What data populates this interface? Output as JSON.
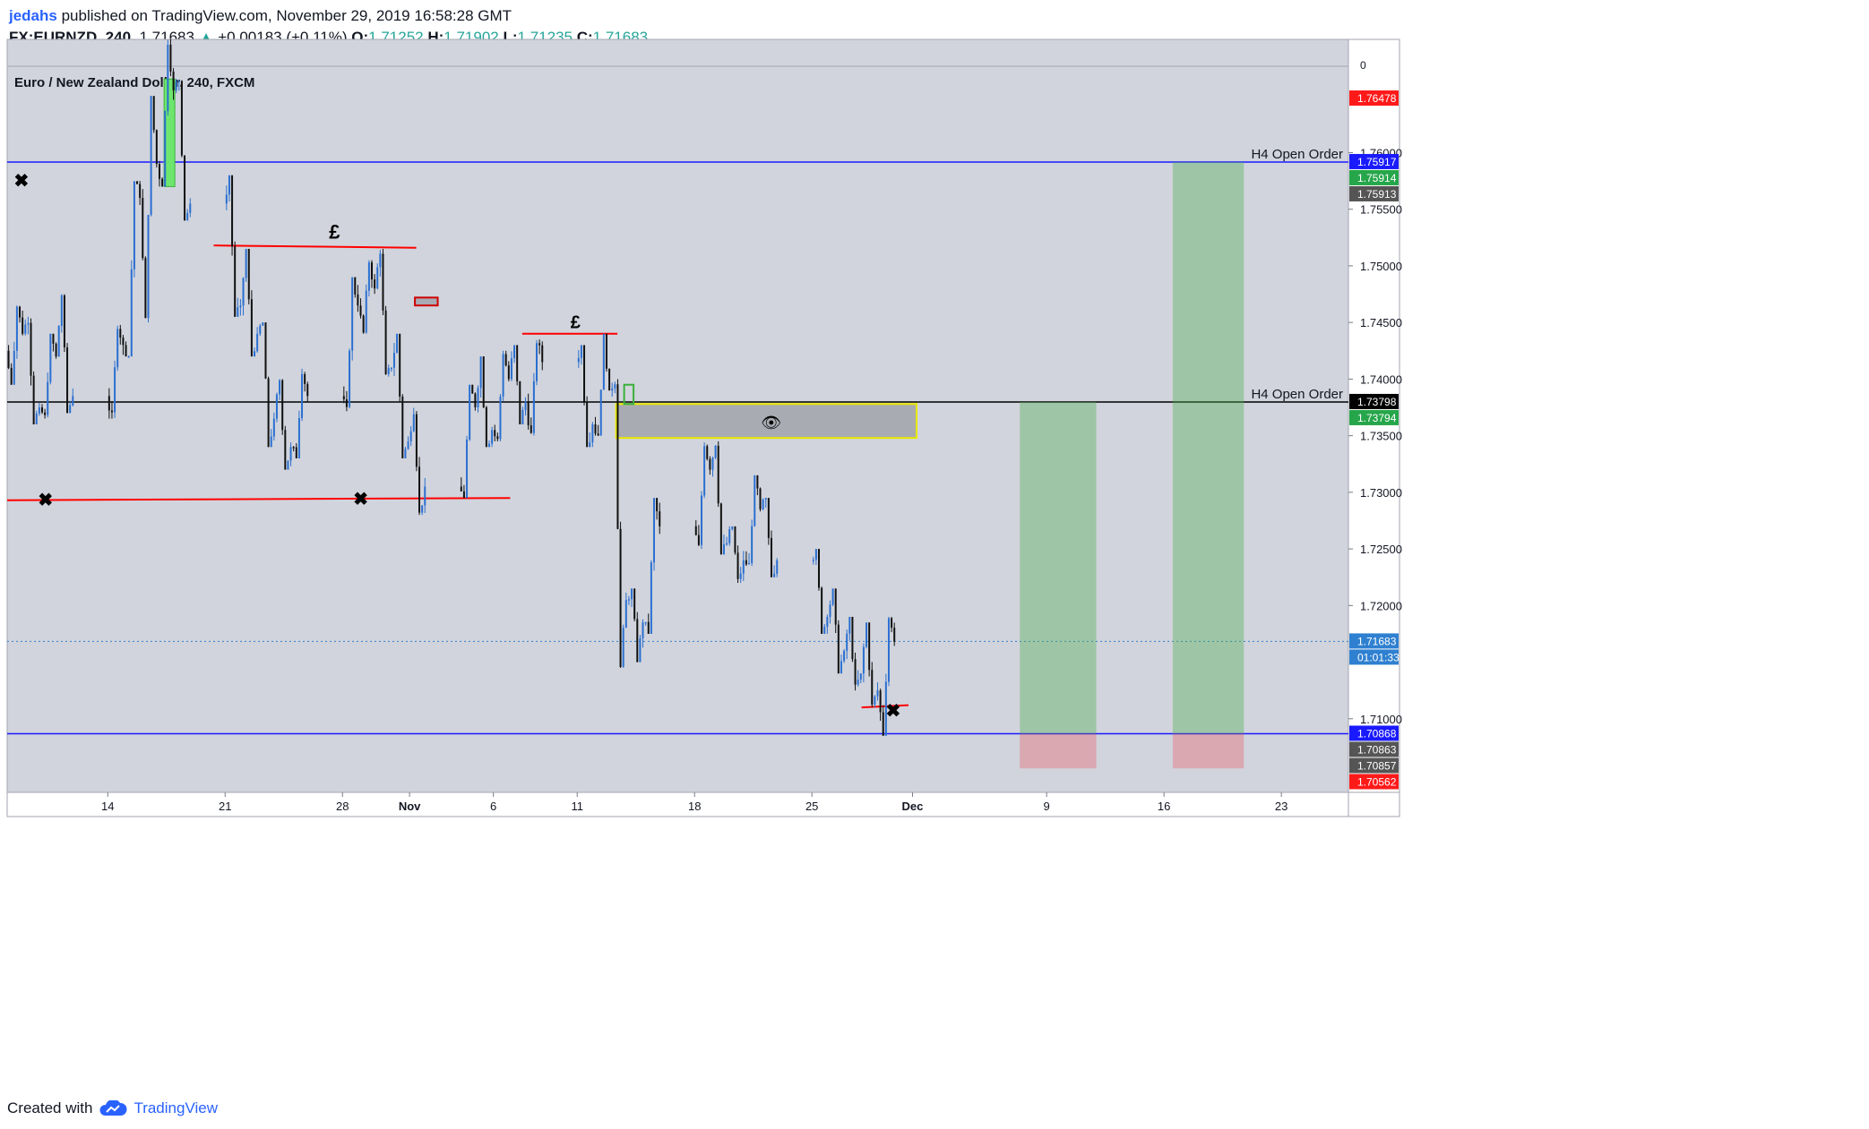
{
  "header": {
    "user": "jedahs",
    "published_text": "published on TradingView.com, November 29, 2019 16:58:28 GMT",
    "symbol": "FX:EURNZD, 240",
    "last": "1.71683",
    "change": "+0.00183 (+0.11%)",
    "open_label": "O:",
    "open": "1.71252",
    "high_label": "H:",
    "high": "1.71902",
    "low_label": "L:",
    "low": "1.71235",
    "close_label": "C:",
    "close": "1.71683"
  },
  "footer": {
    "created_with": "Created with",
    "brand": "TradingView"
  },
  "chart_data": {
    "type": "candlestick",
    "title": "Euro / New Zealand Dollar, 240, FXCM",
    "y_range": [
      1.7035,
      1.77
    ],
    "x_range": [
      "2019-10-08",
      "2019-12-27"
    ],
    "y_ticks": [
      "1.76000",
      "1.75500",
      "1.75000",
      "1.74500",
      "1.74000",
      "1.73500",
      "1.73000",
      "1.72500",
      "1.72000",
      "1.71000"
    ],
    "y_top_label": "0",
    "x_ticks": [
      {
        "label": "14",
        "date": "2019-10-14"
      },
      {
        "label": "21",
        "date": "2019-10-21"
      },
      {
        "label": "28",
        "date": "2019-10-28"
      },
      {
        "label": "Nov",
        "date": "2019-11-01"
      },
      {
        "label": "6",
        "date": "2019-11-06"
      },
      {
        "label": "11",
        "date": "2019-11-11"
      },
      {
        "label": "18",
        "date": "2019-11-18"
      },
      {
        "label": "25",
        "date": "2019-11-25"
      },
      {
        "label": "Dec",
        "date": "2019-12-01"
      },
      {
        "label": "9",
        "date": "2019-12-09"
      },
      {
        "label": "16",
        "date": "2019-12-16"
      },
      {
        "label": "23",
        "date": "2019-12-23"
      }
    ],
    "price_labels": [
      {
        "text": "1.76478",
        "price": 1.76478,
        "color": "#ff1a1a"
      },
      {
        "text": "1.75917",
        "price": 1.75917,
        "color": "#1a1aff"
      },
      {
        "text": "1.75914",
        "price": 1.75914,
        "color": "#26a64a"
      },
      {
        "text": "1.75913",
        "price": 1.75913,
        "color": "#555555"
      },
      {
        "text": "1.73798",
        "price": 1.73798,
        "color": "#000000"
      },
      {
        "text": "1.73794",
        "price": 1.73794,
        "color": "#26a64a"
      },
      {
        "text": "1.71683",
        "price": 1.71683,
        "color": "#2f80d0"
      },
      {
        "text": "01:01:33",
        "price": 1.71683,
        "color": "#2f80d0"
      },
      {
        "text": "1.70868",
        "price": 1.70868,
        "color": "#1a1aff"
      },
      {
        "text": "1.70863",
        "price": 1.70863,
        "color": "#555555"
      },
      {
        "text": "1.70857",
        "price": 1.70857,
        "color": "#555555"
      },
      {
        "text": "1.70562",
        "price": 1.70562,
        "color": "#ff1a1a"
      }
    ],
    "annotations": {
      "h4_label": "H4 Open Order",
      "pound": "£",
      "cross": "✖",
      "eye": "👁"
    },
    "levels": [
      {
        "price": 1.75917,
        "color": "#1a1aff",
        "label": "H4 Open Order"
      },
      {
        "price": 1.73798,
        "color": "#000000",
        "label": "H4 Open Order"
      },
      {
        "price": 1.70868,
        "color": "#1a1aff"
      }
    ],
    "series": [
      {
        "date": "2019-10-08",
        "open": 1.7425,
        "high": 1.7465,
        "low": 1.7395,
        "close": 1.744
      },
      {
        "date": "2019-10-09",
        "open": 1.744,
        "high": 1.7455,
        "low": 1.736,
        "close": 1.7375
      },
      {
        "date": "2019-10-10",
        "open": 1.7375,
        "high": 1.744,
        "low": 1.7365,
        "close": 1.742
      },
      {
        "date": "2019-10-11",
        "open": 1.742,
        "high": 1.7475,
        "low": 1.737,
        "close": 1.7385
      },
      {
        "date": "2019-10-14",
        "open": 1.7385,
        "high": 1.745,
        "low": 1.7365,
        "close": 1.743
      },
      {
        "date": "2019-10-15",
        "open": 1.743,
        "high": 1.7575,
        "low": 1.742,
        "close": 1.756
      },
      {
        "date": "2019-10-16",
        "open": 1.756,
        "high": 1.765,
        "low": 1.745,
        "close": 1.759
      },
      {
        "date": "2019-10-17",
        "open": 1.759,
        "high": 1.77,
        "low": 1.757,
        "close": 1.7655
      },
      {
        "date": "2019-10-18",
        "open": 1.7655,
        "high": 1.7665,
        "low": 1.754,
        "close": 1.7555
      },
      {
        "date": "2019-10-21",
        "open": 1.7555,
        "high": 1.758,
        "low": 1.7455,
        "close": 1.7465
      },
      {
        "date": "2019-10-22",
        "open": 1.7465,
        "high": 1.7515,
        "low": 1.742,
        "close": 1.744
      },
      {
        "date": "2019-10-23",
        "open": 1.744,
        "high": 1.745,
        "low": 1.734,
        "close": 1.7365
      },
      {
        "date": "2019-10-24",
        "open": 1.7365,
        "high": 1.74,
        "low": 1.732,
        "close": 1.734
      },
      {
        "date": "2019-10-25",
        "open": 1.734,
        "high": 1.741,
        "low": 1.733,
        "close": 1.7385
      },
      {
        "date": "2019-10-28",
        "open": 1.7385,
        "high": 1.749,
        "low": 1.737,
        "close": 1.7465
      },
      {
        "date": "2019-10-29",
        "open": 1.7465,
        "high": 1.7505,
        "low": 1.744,
        "close": 1.748
      },
      {
        "date": "2019-10-30",
        "open": 1.748,
        "high": 1.7515,
        "low": 1.74,
        "close": 1.741
      },
      {
        "date": "2019-10-31",
        "open": 1.741,
        "high": 1.744,
        "low": 1.733,
        "close": 1.7345
      },
      {
        "date": "2019-11-01",
        "open": 1.7345,
        "high": 1.7375,
        "low": 1.728,
        "close": 1.7305
      },
      {
        "date": "2019-11-04",
        "open": 1.7305,
        "high": 1.7395,
        "low": 1.7295,
        "close": 1.7375
      },
      {
        "date": "2019-11-05",
        "open": 1.7375,
        "high": 1.742,
        "low": 1.734,
        "close": 1.7355
      },
      {
        "date": "2019-11-06",
        "open": 1.7355,
        "high": 1.7425,
        "low": 1.7345,
        "close": 1.74
      },
      {
        "date": "2019-11-07",
        "open": 1.74,
        "high": 1.743,
        "low": 1.736,
        "close": 1.738
      },
      {
        "date": "2019-11-08",
        "open": 1.738,
        "high": 1.7435,
        "low": 1.735,
        "close": 1.7415
      },
      {
        "date": "2019-11-11",
        "open": 1.7415,
        "high": 1.743,
        "low": 1.734,
        "close": 1.736
      },
      {
        "date": "2019-11-12",
        "open": 1.736,
        "high": 1.744,
        "low": 1.735,
        "close": 1.739
      },
      {
        "date": "2019-11-13",
        "open": 1.739,
        "high": 1.74,
        "low": 1.7145,
        "close": 1.7205
      },
      {
        "date": "2019-11-14",
        "open": 1.7205,
        "high": 1.7215,
        "low": 1.715,
        "close": 1.7185
      },
      {
        "date": "2019-11-15",
        "open": 1.7185,
        "high": 1.7295,
        "low": 1.7175,
        "close": 1.727
      },
      {
        "date": "2019-11-18",
        "open": 1.727,
        "high": 1.7345,
        "low": 1.725,
        "close": 1.732
      },
      {
        "date": "2019-11-19",
        "open": 1.732,
        "high": 1.7345,
        "low": 1.7245,
        "close": 1.7255
      },
      {
        "date": "2019-11-20",
        "open": 1.7255,
        "high": 1.727,
        "low": 1.722,
        "close": 1.724
      },
      {
        "date": "2019-11-21",
        "open": 1.724,
        "high": 1.7315,
        "low": 1.7235,
        "close": 1.7285
      },
      {
        "date": "2019-11-22",
        "open": 1.7285,
        "high": 1.7295,
        "low": 1.7225,
        "close": 1.724
      },
      {
        "date": "2019-11-25",
        "open": 1.724,
        "high": 1.725,
        "low": 1.7175,
        "close": 1.719
      },
      {
        "date": "2019-11-26",
        "open": 1.719,
        "high": 1.7215,
        "low": 1.714,
        "close": 1.716
      },
      {
        "date": "2019-11-27",
        "open": 1.716,
        "high": 1.719,
        "low": 1.7125,
        "close": 1.714
      },
      {
        "date": "2019-11-28",
        "open": 1.714,
        "high": 1.7185,
        "low": 1.711,
        "close": 1.7125
      },
      {
        "date": "2019-11-29",
        "open": 1.7125,
        "high": 1.719,
        "low": 1.7085,
        "close": 1.7168
      }
    ],
    "grid": false,
    "legend": "none"
  }
}
